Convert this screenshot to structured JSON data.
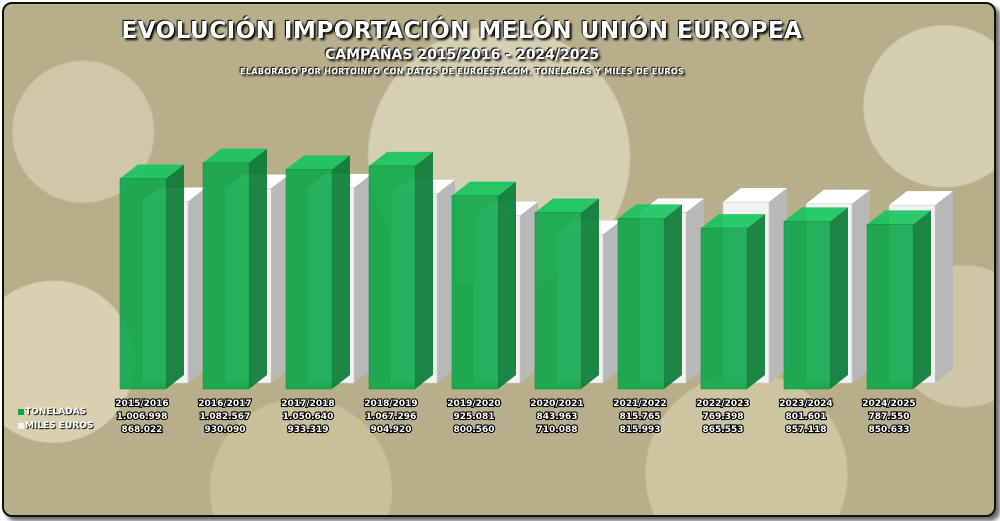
{
  "header": {
    "title": "EVOLUCIÓN IMPORTACIÓN MELÓN UNIÓN EUROPEA",
    "subtitle": "CAMPAÑAS 2015/2016 - 2024/2025",
    "source": "ELABORADO POR HORTOINFO CON DATOS DE EUROESTACOM. TONELADAS Y MILES DE EUROS"
  },
  "legend": {
    "toneladas": "TONELADAS",
    "euros": "MILES EUROS"
  },
  "colors": {
    "toneladas": "#0aa84a",
    "euros": "#f2f2f2"
  },
  "chart_data": {
    "type": "bar",
    "title": "EVOLUCIÓN IMPORTACIÓN MELÓN UNIÓN EUROPEA",
    "categories": [
      "2015/2016",
      "2016/2017",
      "2017/2018",
      "2018/2019",
      "2019/2020",
      "2020/2021",
      "2021/2022",
      "2022/2023",
      "2023/2024",
      "2024/2025"
    ],
    "series": [
      {
        "name": "TONELADAS",
        "values": [
          1006998,
          1082567,
          1050640,
          1067296,
          925081,
          843963,
          815765,
          769398,
          801601,
          787550
        ],
        "labels": [
          "1.006.998",
          "1.082.567",
          "1.050.640",
          "1.067.296",
          "925.081",
          "843.963",
          "815.765",
          "769.398",
          "801.601",
          "787.550"
        ]
      },
      {
        "name": "MILES EUROS",
        "values": [
          868022,
          930090,
          933319,
          904920,
          800560,
          710088,
          815993,
          865553,
          857118,
          850633
        ],
        "labels": [
          "868.022",
          "930.090",
          "933.319",
          "904.920",
          "800.560",
          "710.088",
          "815.993",
          "865.553",
          "857.118",
          "850.633"
        ]
      }
    ],
    "ylim": [
      0,
      1100000
    ],
    "grid": false,
    "legend": "bottom-left"
  }
}
